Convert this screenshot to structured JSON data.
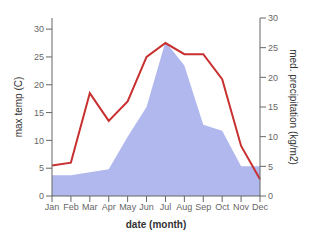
{
  "chart_data": {
    "type": "line",
    "categories": [
      "Jan",
      "Feb",
      "Mar",
      "Apr",
      "May",
      "Jun",
      "Jul",
      "Aug",
      "Sep",
      "Oct",
      "Nov",
      "Dec"
    ],
    "series": [
      {
        "type": "area",
        "axis": "y2",
        "color": "#b0b8ee",
        "values": [
          3.5,
          3.5,
          4.0,
          4.5,
          10.0,
          15.0,
          26.0,
          22.0,
          12.0,
          11.0,
          5.0,
          5.0
        ]
      },
      {
        "type": "line",
        "color": "#c83030",
        "values": [
          5.5,
          6.0,
          18.5,
          13.5,
          17.0,
          25.0,
          27.5,
          25.5,
          25.5,
          21.0,
          9.0,
          3.0
        ]
      }
    ],
    "xlabel": "date (month)",
    "ylabel": "max temp (C)",
    "y2label": "med. precipitation (kg/m2)",
    "ylim": [
      0,
      32
    ],
    "yticks": [
      0,
      5,
      10,
      15,
      20,
      25,
      30
    ],
    "y2lim": [
      0,
      30
    ],
    "y2ticks": [
      0,
      5,
      10,
      15,
      20,
      25,
      30
    ],
    "grid": false
  }
}
